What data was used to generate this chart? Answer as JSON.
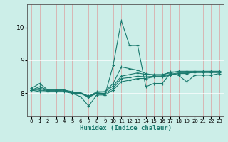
{
  "xlabel": "Humidex (Indice chaleur)",
  "bg_color": "#cceee8",
  "grid_color": "#aaddcc",
  "line_color": "#1a7a6e",
  "xlim": [
    -0.5,
    23.5
  ],
  "ylim": [
    7.3,
    10.7
  ],
  "yticks": [
    8,
    9,
    10
  ],
  "series": [
    [
      8.15,
      8.3,
      8.1,
      8.1,
      8.1,
      8.0,
      7.9,
      7.62,
      7.95,
      7.95,
      8.85,
      10.2,
      9.45,
      9.45,
      8.2,
      8.3,
      8.3,
      8.6,
      8.55,
      8.35,
      8.55,
      8.55,
      8.55,
      8.6
    ],
    [
      8.1,
      8.05,
      8.05,
      8.05,
      8.05,
      8.0,
      8.0,
      7.9,
      8.0,
      7.95,
      8.1,
      8.35,
      8.4,
      8.45,
      8.45,
      8.5,
      8.5,
      8.55,
      8.6,
      8.6,
      8.65,
      8.65,
      8.65,
      8.65
    ],
    [
      8.1,
      8.15,
      8.08,
      8.08,
      8.1,
      8.02,
      8.02,
      7.92,
      8.02,
      8.05,
      8.22,
      8.52,
      8.57,
      8.62,
      8.57,
      8.57,
      8.57,
      8.62,
      8.67,
      8.67,
      8.67,
      8.67,
      8.67,
      8.67
    ],
    [
      8.1,
      8.2,
      8.1,
      8.1,
      8.1,
      8.05,
      8.0,
      7.9,
      8.05,
      8.05,
      8.3,
      8.8,
      8.75,
      8.7,
      8.6,
      8.55,
      8.55,
      8.65,
      8.65,
      8.65,
      8.65,
      8.65,
      8.65,
      8.65
    ],
    [
      8.1,
      8.1,
      8.07,
      8.07,
      8.07,
      8.03,
      8.0,
      7.88,
      8.0,
      8.0,
      8.15,
      8.45,
      8.48,
      8.52,
      8.5,
      8.52,
      8.52,
      8.58,
      8.62,
      8.62,
      8.63,
      8.63,
      8.63,
      8.63
    ]
  ]
}
